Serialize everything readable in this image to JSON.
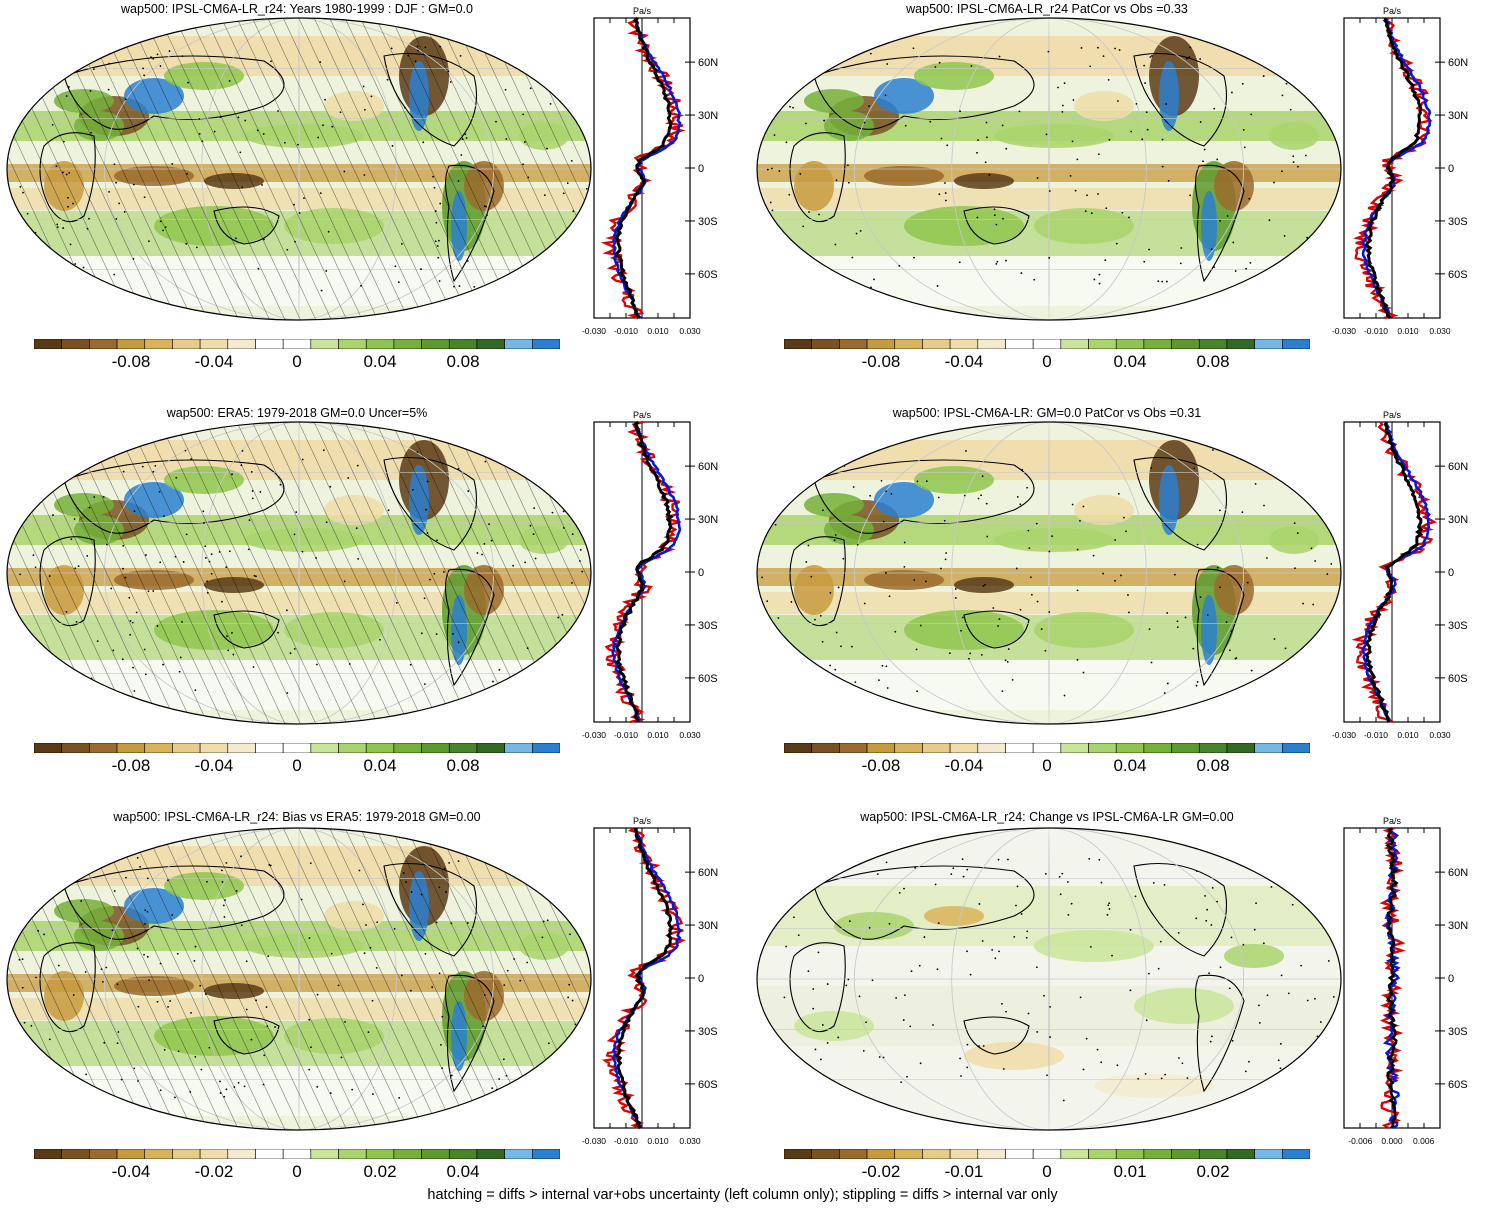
{
  "colors": {
    "scale": [
      "#5a3b16",
      "#7a5222",
      "#9b6b2d",
      "#c89a3e",
      "#d9b35a",
      "#e6cc86",
      "#efdca8",
      "#f5ead0",
      "#ffffff",
      "#ffffff",
      "#c9e59a",
      "#a9d46c",
      "#8fc54e",
      "#74b03a",
      "#5c9a2e",
      "#47842a",
      "#326a24",
      "#73b9e8",
      "#2a7fd0"
    ],
    "model_line": "#e00000",
    "obs_line": "#0018e0",
    "mean_line": "#000000"
  },
  "panels": [
    {
      "id": "p1",
      "title": "wap500: IPSL-CM6A-LR_r24: Years 1980-1999 : DJF : GM=0.0",
      "hatched": true,
      "cbar_ticks": [
        "-0.08",
        "-0.04",
        "0",
        "0.04",
        "0.08"
      ],
      "zonal_axis_unit": "Pa/s",
      "zonal_x_ticks": [
        "-0.030",
        "-0.010",
        "0.010",
        "0.030"
      ],
      "zonal_y_ticks": [
        "60N",
        "30N",
        "0",
        "30S",
        "60S"
      ]
    },
    {
      "id": "p2",
      "title": "wap500: IPSL-CM6A-LR_r24 PatCor vs Obs =0.33",
      "hatched": false,
      "cbar_ticks": [
        "-0.08",
        "-0.04",
        "0",
        "0.04",
        "0.08"
      ],
      "zonal_axis_unit": "Pa/s",
      "zonal_x_ticks": [
        "-0.030",
        "-0.010",
        "0.010",
        "0.030"
      ],
      "zonal_y_ticks": [
        "60N",
        "30N",
        "0",
        "30S",
        "60S"
      ]
    },
    {
      "id": "p3",
      "title": "wap500: ERA5: 1979-2018 GM=0.0 Uncer=5%",
      "hatched": true,
      "cbar_ticks": [
        "-0.08",
        "-0.04",
        "0",
        "0.04",
        "0.08"
      ],
      "zonal_axis_unit": "Pa/s",
      "zonal_x_ticks": [
        "-0.030",
        "-0.010",
        "0.010",
        "0.030"
      ],
      "zonal_y_ticks": [
        "60N",
        "30N",
        "0",
        "30S",
        "60S"
      ]
    },
    {
      "id": "p4",
      "title": "wap500: IPSL-CM6A-LR: GM=0.0 PatCor vs Obs =0.31",
      "hatched": false,
      "cbar_ticks": [
        "-0.08",
        "-0.04",
        "0",
        "0.04",
        "0.08"
      ],
      "zonal_axis_unit": "Pa/s",
      "zonal_x_ticks": [
        "-0.030",
        "-0.010",
        "0.010",
        "0.030"
      ],
      "zonal_y_ticks": [
        "60N",
        "30N",
        "0",
        "30S",
        "60S"
      ]
    },
    {
      "id": "p5",
      "title": "wap500: IPSL-CM6A-LR_r24: Bias vs ERA5: 1979-2018 GM=0.00",
      "hatched": true,
      "cbar_ticks": [
        "-0.04",
        "-0.02",
        "0",
        "0.02",
        "0.04"
      ],
      "zonal_axis_unit": "Pa/s",
      "zonal_x_ticks": [
        "-0.030",
        "-0.010",
        "0.010",
        "0.030"
      ],
      "zonal_y_ticks": [
        "60N",
        "30N",
        "0",
        "30S",
        "60S"
      ]
    },
    {
      "id": "p6",
      "title": "wap500: IPSL-CM6A-LR_r24: Change vs IPSL-CM6A-LR GM=0.00",
      "hatched": false,
      "cbar_ticks": [
        "-0.02",
        "-0.01",
        "0",
        "0.01",
        "0.02"
      ],
      "zonal_axis_unit": "Pa/s",
      "zonal_x_ticks": [
        "-0.006",
        "0.000",
        "0.006"
      ],
      "zonal_y_ticks": [
        "60N",
        "30N",
        "0",
        "30S",
        "60S"
      ]
    }
  ],
  "footnote": "hatching = diffs > internal var+obs uncertainty (left column only); stippling = diffs > internal var only"
}
